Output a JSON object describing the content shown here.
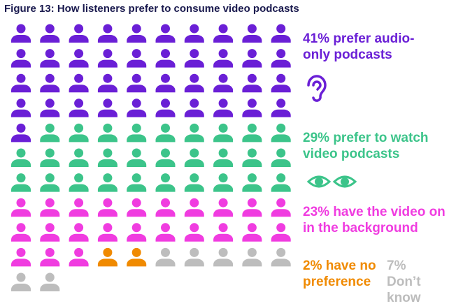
{
  "chart_data": {
    "type": "waffle",
    "title": "Figure 13: How listeners prefer to consume video podcasts",
    "categories": [
      "prefer audio-only podcasts",
      "prefer to watch video podcasts",
      "have the video on in the background",
      "have no preference",
      "Don’t know"
    ],
    "values": [
      41,
      29,
      23,
      2,
      7
    ],
    "value_labels": [
      "41%",
      "29%",
      "23%",
      "2%",
      "7%"
    ],
    "colors": [
      "#6a1fd6",
      "#3cc48a",
      "#f03ce0",
      "#f08a00",
      "#bdbdbd"
    ]
  }
}
